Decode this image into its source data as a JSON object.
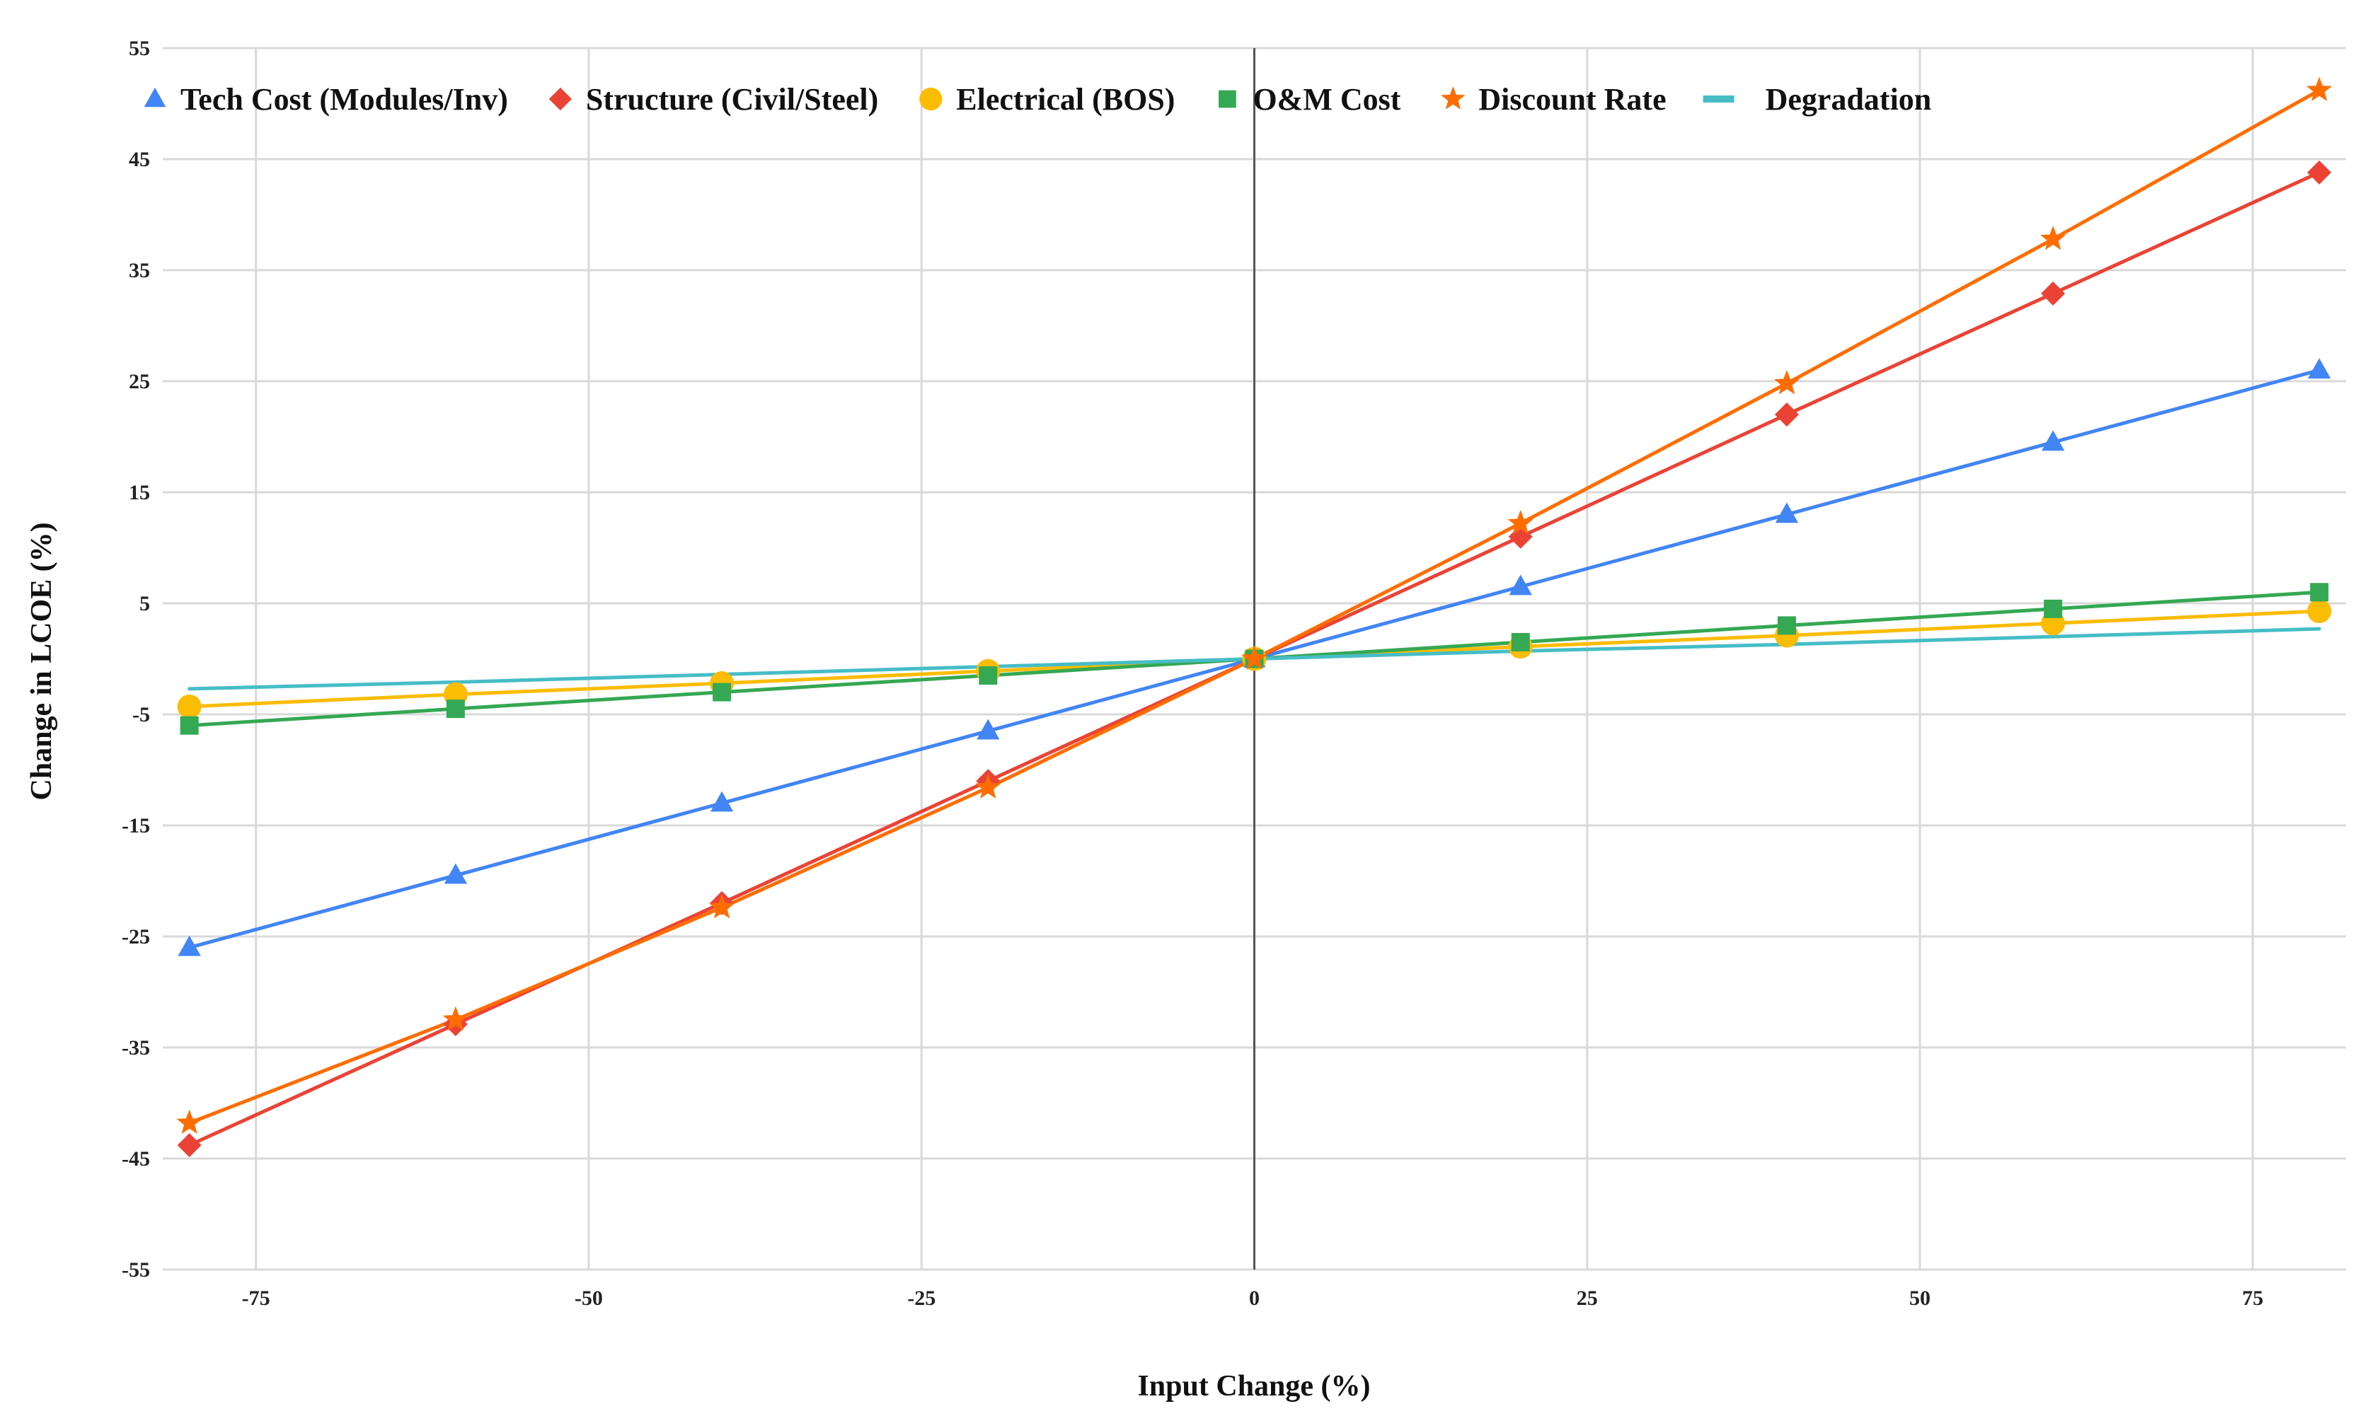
{
  "chart_data": {
    "type": "line",
    "title": "",
    "xlabel": "Input Change (%)",
    "ylabel": "Change in LCOE (%)",
    "xlim": [
      -82,
      82
    ],
    "ylim": [
      -55,
      55
    ],
    "x_ticks": [
      -75,
      -50,
      -25,
      0,
      25,
      50,
      75
    ],
    "y_ticks": [
      55,
      45,
      35,
      25,
      15,
      5,
      -5,
      -15,
      -25,
      -35,
      -45,
      -55
    ],
    "x_tick_labels": [
      "-75",
      "-50",
      "-25",
      "0",
      "25",
      "50",
      "75"
    ],
    "y_tick_labels": [
      "55",
      "45",
      "35",
      "25",
      "15",
      "5",
      "-5",
      "-15",
      "-25",
      "-35",
      "-45",
      "-55"
    ],
    "grid": true,
    "zero_line": true,
    "legend_position": "top",
    "x": [
      -80,
      -60,
      -40,
      -20,
      0,
      20,
      40,
      60,
      80
    ],
    "series": [
      {
        "name": "Tech Cost (Modules/Inv)",
        "color": "#4285F4",
        "marker": "triangle",
        "values": [
          -26,
          -19.5,
          -13,
          -6.5,
          0,
          6.5,
          13,
          19.5,
          26
        ]
      },
      {
        "name": "Structure (Civil/Steel)",
        "color": "#EA4335",
        "marker": "diamond",
        "values": [
          -43.8,
          -32.9,
          -22,
          -11,
          0,
          11,
          22,
          32.9,
          43.8
        ]
      },
      {
        "name": "Electrical (BOS)",
        "color": "#FBBC04",
        "marker": "circle",
        "values": [
          -4.3,
          -3.2,
          -2.2,
          -1.1,
          0,
          1.1,
          2.1,
          3.2,
          4.3
        ]
      },
      {
        "name": "O&M Cost",
        "color": "#34A853",
        "marker": "square",
        "values": [
          -6,
          -4.5,
          -3,
          -1.5,
          0,
          1.5,
          3,
          4.5,
          6
        ]
      },
      {
        "name": "Discount Rate",
        "color": "#FF6D01",
        "marker": "star",
        "values": [
          -41.8,
          -32.5,
          -22.4,
          -11.6,
          0,
          12.2,
          24.8,
          37.8,
          51.2
        ]
      },
      {
        "name": "Degradation",
        "color": "#46BDC6",
        "marker": "none",
        "values": [
          -2.7,
          -2.1,
          -1.4,
          -0.7,
          0,
          0.7,
          1.3,
          2.0,
          2.7
        ]
      }
    ]
  }
}
